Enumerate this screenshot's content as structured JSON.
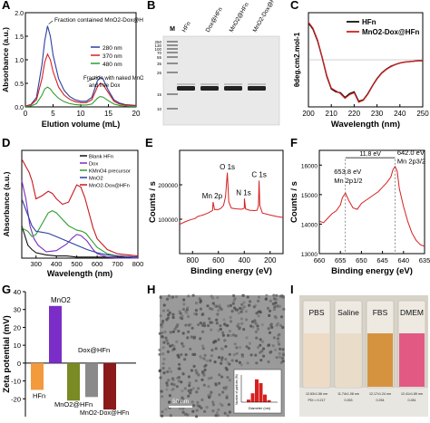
{
  "panels": {
    "A": {
      "letter": "A",
      "chart_data": {
        "type": "line",
        "xlabel": "Elution volume (mL)",
        "ylabel": "Absorbance (a.u.)",
        "xlim": [
          0,
          20
        ],
        "ylim": [
          0,
          2
        ],
        "xticks": [
          0,
          5,
          10,
          15,
          20
        ],
        "yticks": [
          "0.0",
          "0.5",
          "1.0",
          "1.5",
          "2.0"
        ],
        "legend": [
          "280 nm",
          "370 nm",
          "480 nm"
        ],
        "legend_position": "right",
        "annotations": [
          "Fraction contained MnO2-Dox@HFn",
          "Fraction with naked MnO2 and free Dox"
        ],
        "series": [
          {
            "name": "280 nm",
            "color": "#2c3fa0",
            "x": [
              0,
              1,
              2,
              3,
              3.5,
              4,
              4.5,
              5,
              6,
              7,
              8,
              9,
              10,
              11,
              12,
              13,
              13.5,
              14,
              15,
              16,
              17,
              18,
              19,
              20
            ],
            "y": [
              0.02,
              0.05,
              0.2,
              0.9,
              1.4,
              1.72,
              1.5,
              1.1,
              0.6,
              0.35,
              0.22,
              0.15,
              0.12,
              0.12,
              0.2,
              0.55,
              0.62,
              0.6,
              0.35,
              0.15,
              0.08,
              0.05,
              0.04,
              0.03
            ]
          },
          {
            "name": "370 nm",
            "color": "#d62020",
            "x": [
              0,
              1,
              2,
              3,
              3.5,
              4,
              4.5,
              5,
              6,
              7,
              8,
              9,
              10,
              11,
              12,
              13,
              13.5,
              14,
              15,
              16,
              17,
              18,
              19,
              20
            ],
            "y": [
              0.02,
              0.04,
              0.15,
              0.6,
              0.95,
              1.12,
              1.0,
              0.75,
              0.42,
              0.25,
              0.16,
              0.11,
              0.09,
              0.09,
              0.15,
              0.42,
              0.5,
              0.48,
              0.3,
              0.12,
              0.06,
              0.04,
              0.03,
              0.02
            ]
          },
          {
            "name": "480 nm",
            "color": "#2e9e2e",
            "x": [
              0,
              1,
              2,
              3,
              3.5,
              4,
              4.5,
              5,
              6,
              7,
              8,
              9,
              10,
              11,
              12,
              13,
              13.5,
              14,
              15,
              16,
              17,
              18,
              19,
              20
            ],
            "y": [
              0.01,
              0.02,
              0.07,
              0.25,
              0.38,
              0.42,
              0.38,
              0.3,
              0.18,
              0.11,
              0.07,
              0.05,
              0.04,
              0.04,
              0.06,
              0.18,
              0.22,
              0.21,
              0.13,
              0.06,
              0.03,
              0.02,
              0.01,
              0.01
            ]
          }
        ]
      }
    },
    "B": {
      "letter": "B",
      "marker_label": "M",
      "lane_labels": [
        "HFn",
        "Dox@HFn",
        "MnO2@HFn",
        "MnO2-Dox@HFn"
      ],
      "mw_labels": [
        "250",
        "130",
        "100",
        "70",
        "55",
        "35",
        "26",
        "15",
        "10"
      ]
    },
    "C": {
      "letter": "C",
      "chart_data": {
        "type": "line",
        "xlabel": "Wavelength (nm)",
        "ylabel": "θdeg.cm2.mol-1",
        "xlim": [
          200,
          250
        ],
        "ylim": [
          -1,
          1
        ],
        "xticks": [
          200,
          210,
          220,
          230,
          240,
          250
        ],
        "legend": [
          "HFn",
          "MnO2-Dox@HFn"
        ],
        "legend_position": "top-right",
        "series": [
          {
            "name": "HFn",
            "color": "#111111",
            "x": [
              200,
              202,
              204,
              206,
              208,
              210,
              212,
              214,
              216,
              218,
              220,
              222,
              224,
              226,
              228,
              230,
              232,
              234,
              236,
              238,
              240,
              242,
              244,
              246,
              248,
              250
            ],
            "y": [
              0.78,
              0.65,
              0.4,
              0.05,
              -0.35,
              -0.62,
              -0.68,
              -0.7,
              -0.8,
              -0.72,
              -0.68,
              -0.88,
              -0.85,
              -0.72,
              -0.55,
              -0.4,
              -0.28,
              -0.2,
              -0.14,
              -0.1,
              -0.07,
              -0.05,
              -0.04,
              -0.03,
              -0.02,
              -0.02
            ]
          },
          {
            "name": "MnO2-Dox@HFn",
            "color": "#d62020",
            "x": [
              200,
              202,
              204,
              206,
              208,
              210,
              212,
              214,
              216,
              218,
              220,
              222,
              224,
              226,
              228,
              230,
              232,
              234,
              236,
              238,
              240,
              242,
              244,
              246,
              248,
              250
            ],
            "y": [
              0.8,
              0.67,
              0.42,
              0.06,
              -0.33,
              -0.6,
              -0.66,
              -0.72,
              -0.82,
              -0.74,
              -0.7,
              -0.9,
              -0.86,
              -0.73,
              -0.56,
              -0.41,
              -0.29,
              -0.21,
              -0.15,
              -0.1,
              -0.07,
              -0.05,
              -0.04,
              -0.03,
              -0.02,
              -0.02
            ]
          }
        ]
      }
    },
    "D": {
      "letter": "D",
      "chart_data": {
        "type": "line",
        "xlabel": "Wavelength (nm)",
        "ylabel": "Absorbance (a.u.)",
        "xlim": [
          230,
          800
        ],
        "ylim": [
          0,
          1
        ],
        "xticks": [
          300,
          400,
          500,
          600,
          700,
          800
        ],
        "legend": [
          "Blank HFn",
          "Dox",
          "KMnO4 precursor",
          "MnO2",
          "MnO2-Dox@HFn"
        ],
        "legend_position": "top-right",
        "series": [
          {
            "name": "Blank HFn",
            "color": "#111111",
            "x": [
              230,
              260,
              280,
              300,
              350,
              400,
              450,
              500,
              550,
              600,
              700,
              800
            ],
            "y": [
              0.3,
              0.12,
              0.08,
              0.05,
              0.03,
              0.02,
              0.02,
              0.01,
              0.01,
              0.01,
              0.01,
              0.0
            ]
          },
          {
            "name": "Dox",
            "color": "#7b2fbf",
            "x": [
              230,
              250,
              270,
              290,
              310,
              350,
              400,
              450,
              480,
              500,
              520,
              550,
              580,
              600,
              650,
              700,
              800
            ],
            "y": [
              0.72,
              0.55,
              0.3,
              0.18,
              0.12,
              0.06,
              0.07,
              0.13,
              0.19,
              0.22,
              0.21,
              0.16,
              0.08,
              0.04,
              0.01,
              0.0,
              0.0
            ]
          },
          {
            "name": "KMnO4 precursor",
            "color": "#2e9e2e",
            "x": [
              230,
              260,
              280,
              300,
              330,
              360,
              380,
              400,
              430,
              460,
              500,
              525,
              545,
              570,
              600,
              650,
              700,
              800
            ],
            "y": [
              0.28,
              0.25,
              0.2,
              0.22,
              0.32,
              0.42,
              0.44,
              0.42,
              0.36,
              0.3,
              0.26,
              0.25,
              0.23,
              0.17,
              0.1,
              0.04,
              0.02,
              0.01
            ]
          },
          {
            "name": "MnO2",
            "color": "#2c3fa0",
            "x": [
              230,
              260,
              280,
              300,
              330,
              360,
              400,
              450,
              500,
              550,
              600,
              650,
              700,
              800
            ],
            "y": [
              0.55,
              0.4,
              0.3,
              0.25,
              0.24,
              0.23,
              0.2,
              0.16,
              0.12,
              0.08,
              0.05,
              0.03,
              0.02,
              0.01
            ]
          },
          {
            "name": "MnO2-Dox@HFn",
            "color": "#c8181e",
            "x": [
              230,
              250,
              265,
              280,
              300,
              330,
              360,
              380,
              400,
              430,
              460,
              480,
              500,
              520,
              540,
              560,
              580,
              600,
              650,
              700,
              800
            ],
            "y": [
              0.92,
              0.85,
              0.8,
              0.72,
              0.55,
              0.58,
              0.62,
              0.6,
              0.55,
              0.5,
              0.52,
              0.6,
              0.68,
              0.66,
              0.56,
              0.42,
              0.28,
              0.18,
              0.08,
              0.04,
              0.02
            ]
          }
        ]
      }
    },
    "E": {
      "letter": "E",
      "chart_data": {
        "type": "line",
        "xlabel": "Binding energy (eV)",
        "ylabel": "Counts / s",
        "xlim": [
          900,
          100
        ],
        "ylim": [
          0,
          300000
        ],
        "xticks": [
          800,
          600,
          400,
          200
        ],
        "yticks": [
          "100000",
          "200000"
        ],
        "annotations": [
          "O 1s",
          "Mn 2p",
          "N 1s",
          "C 1s"
        ],
        "series": [
          {
            "name": "",
            "color": "#d62020",
            "x": [
              900,
              860,
              820,
              780,
              760,
              740,
              720,
              700,
              680,
              660,
              645,
              641,
              630,
              600,
              580,
              560,
              545,
              531,
              520,
              500,
              460,
              420,
              400,
              399,
              390,
              360,
              320,
              300,
              290,
              285,
              280,
              260,
              200,
              150,
              100
            ],
            "y": [
              85000,
              92000,
              98000,
              102000,
              108000,
              110000,
              112000,
              115000,
              118000,
              122000,
              125000,
              150000,
              128000,
              128000,
              132000,
              140000,
              165000,
              235000,
              150000,
              132000,
              130000,
              129000,
              132000,
              160000,
              130000,
              126000,
              125000,
              126000,
              140000,
              212000,
              140000,
              118000,
              112000,
              108000,
              105000
            ]
          }
        ]
      }
    },
    "F": {
      "letter": "F",
      "chart_data": {
        "type": "line",
        "xlabel": "Binding energy (eV)",
        "ylabel": "Counts / s",
        "xlim": [
          660,
          635
        ],
        "ylim": [
          13000,
          16500
        ],
        "xticks": [
          660,
          655,
          650,
          645,
          640,
          635
        ],
        "yticks": [
          "13000",
          "14000",
          "15000",
          "16000"
        ],
        "annotations": [
          "11.8 eV",
          "653.8 eV",
          "Mn 2p1/2",
          "642.0 eV",
          "Mn 2p3/2"
        ],
        "series": [
          {
            "name": "",
            "color": "#d62020",
            "x": [
              660,
              659,
              658,
              657,
              656,
              655,
              654.5,
              653.8,
              653,
              652,
              651,
              650,
              649,
              648,
              647,
              646,
              645,
              644,
              643,
              642.5,
              642,
              641.5,
              641,
              640,
              639,
              638,
              637,
              636,
              635
            ],
            "y": [
              14100,
              14050,
              14200,
              14350,
              14450,
              14650,
              14900,
              15050,
              14800,
              14550,
              14500,
              14700,
              14800,
              14900,
              15000,
              15100,
              15250,
              15400,
              15600,
              15850,
              15950,
              15800,
              15200,
              14600,
              14100,
              13700,
              13450,
              13300,
              13250
            ]
          }
        ]
      }
    },
    "G": {
      "letter": "G",
      "chart_data": {
        "type": "bar",
        "ylabel": "Zeta potential (mV)",
        "ylim": [
          -30,
          40
        ],
        "yticks": [
          "-20",
          "-10",
          "0",
          "10",
          "20",
          "30",
          "40"
        ],
        "categories": [
          "HFn",
          "MnO2",
          "MnO2@HFn",
          "Dox@HFn",
          "MnO2-Dox@HFn"
        ],
        "values": [
          -15,
          32,
          -21,
          -19,
          -26
        ],
        "colors": [
          "#f39a3c",
          "#7a2ec7",
          "#7a8a24",
          "#8a8a8a",
          "#8b1a1a"
        ]
      }
    },
    "H": {
      "letter": "H",
      "scale_bar": "50 nm",
      "inset": {
        "xlabel": "Diameter (nm)",
        "ylabel": "Number of particles (%)"
      }
    },
    "I": {
      "letter": "I",
      "labels": [
        "PBS",
        "Saline",
        "FBS",
        "DMEM"
      ],
      "sizes": [
        "12.63±1.56 nm",
        "11.74±1.08 nm",
        "12.17±1.24 nm",
        "12.41±1.89 nm"
      ],
      "pdi": [
        "PDI = 0.217",
        "0.263",
        "0.254",
        "0.281"
      ],
      "liquid_colors": [
        "#ecd9c2",
        "#e8dbc8",
        "#d38a2e",
        "#e04a7a"
      ]
    }
  }
}
